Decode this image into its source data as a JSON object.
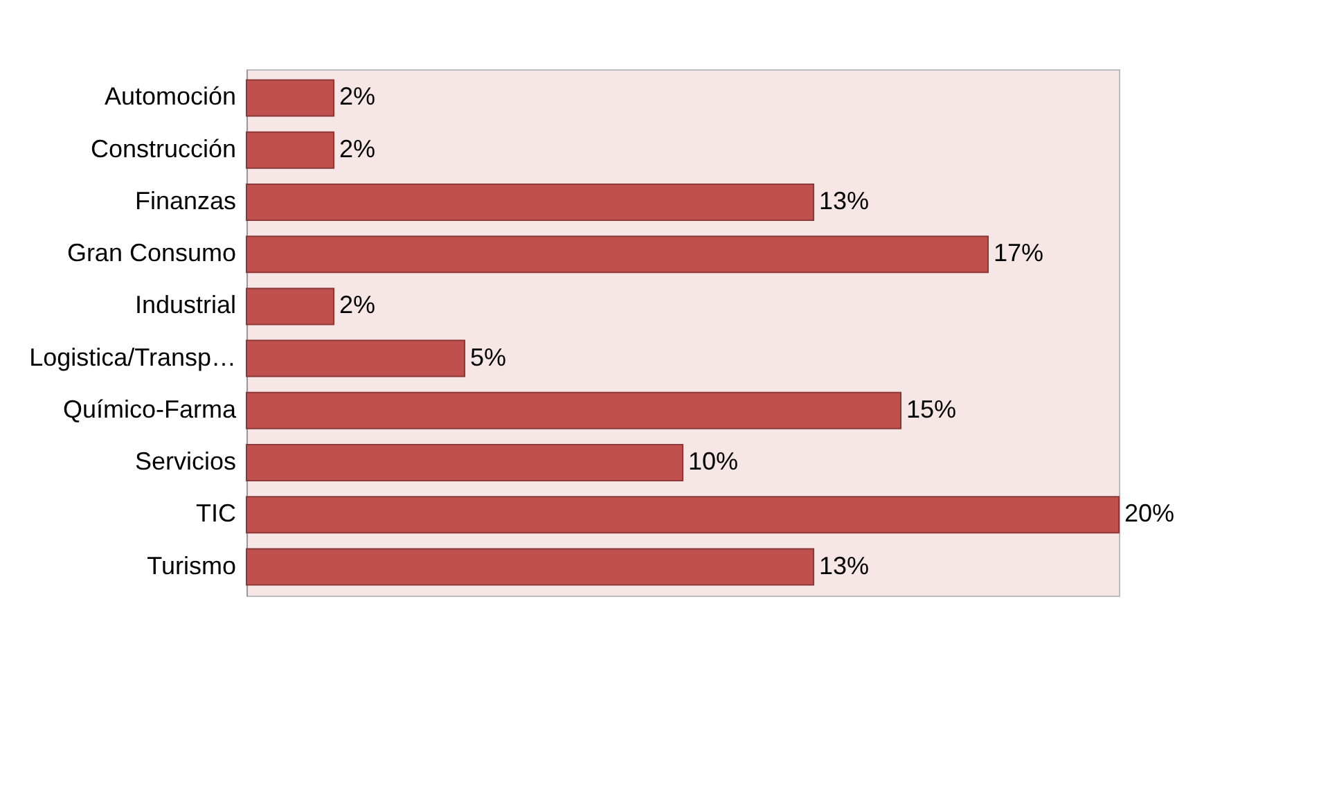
{
  "chart_data": {
    "type": "bar",
    "orientation": "horizontal",
    "categories": [
      "Automoción",
      "Construcción",
      "Finanzas",
      "Gran Consumo",
      "Industrial",
      "Logistica/Transp…",
      "Químico-Farma",
      "Servicios",
      "TIC",
      "Turismo"
    ],
    "values": [
      2,
      2,
      13,
      17,
      2,
      5,
      15,
      10,
      20,
      13
    ],
    "value_labels": [
      "2%",
      "2%",
      "13%",
      "17%",
      "2%",
      "5%",
      "15%",
      "10%",
      "20%",
      "13%"
    ],
    "color": "#c0504d"
  }
}
